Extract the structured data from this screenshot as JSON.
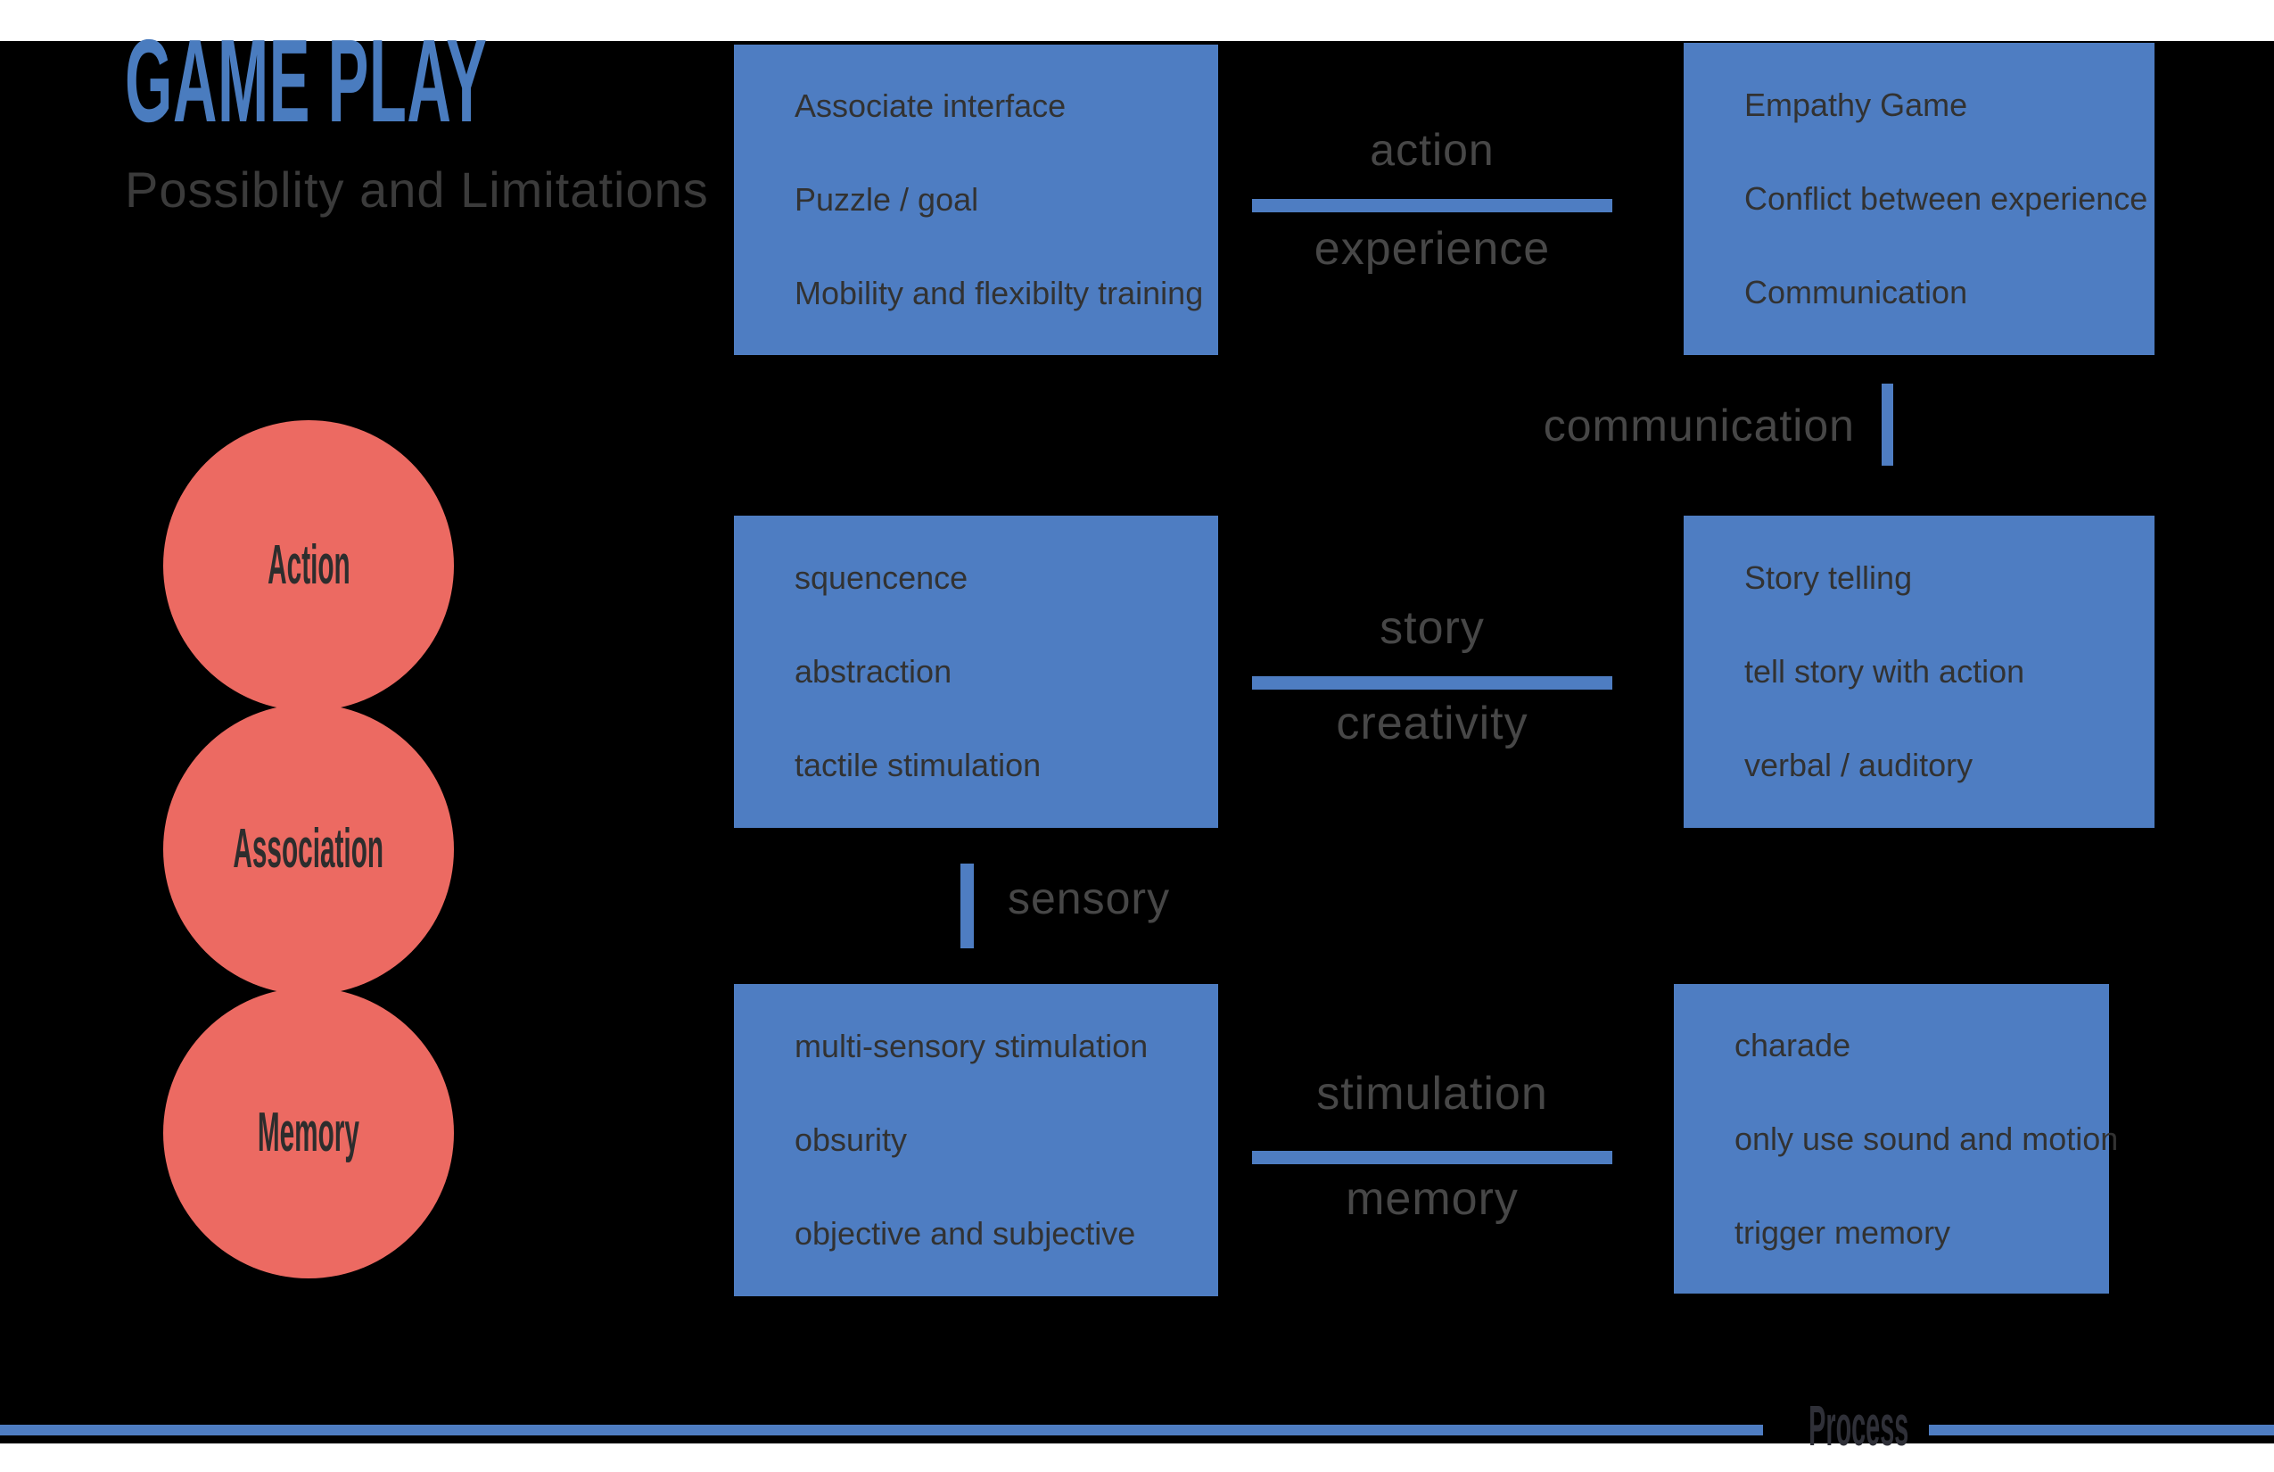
{
  "page": {
    "title": "GAME PLAY",
    "subtitle": "Possiblity and Limitations",
    "process_label": "Process"
  },
  "colors": {
    "accent_blue": "#4e7dc2",
    "title_blue": "#4a7cbf",
    "circle_red": "#ec6a62",
    "text_dark": "#323232",
    "label_gray": "#474747",
    "circle_text": "#2d2d2d",
    "subtitle_gray": "#3b3b3b",
    "process_text": "#2f3038",
    "background_black": "#000000",
    "page_white": "#ffffff"
  },
  "circles": [
    {
      "label": "Action"
    },
    {
      "label": "Association"
    },
    {
      "label": "Memory"
    }
  ],
  "boxes": {
    "top_left": {
      "items": [
        "Associate interface",
        "Puzzle / goal",
        "Mobility and flexibilty training"
      ]
    },
    "top_right": {
      "items": [
        "Empathy Game",
        "Conflict between experience",
        "Communication"
      ]
    },
    "mid_left": {
      "items": [
        "squencence",
        "abstraction",
        "tactile stimulation"
      ]
    },
    "mid_right": {
      "items": [
        "Story telling",
        "tell story with action",
        "verbal / auditory"
      ]
    },
    "bottom_left": {
      "items": [
        "multi-sensory stimulation",
        "obsurity",
        "objective and subjective"
      ]
    },
    "bottom_right": {
      "items": [
        "charade",
        "only use sound and motion",
        "trigger memory"
      ]
    }
  },
  "connectors": {
    "action_experience": {
      "top": "action",
      "bottom": "experience"
    },
    "communication": {
      "label": "communication"
    },
    "story_creativity": {
      "top": "story",
      "bottom": "creativity"
    },
    "sensory": {
      "label": "sensory"
    },
    "stimulation_memory": {
      "top": "stimulation",
      "bottom": "memory"
    }
  }
}
